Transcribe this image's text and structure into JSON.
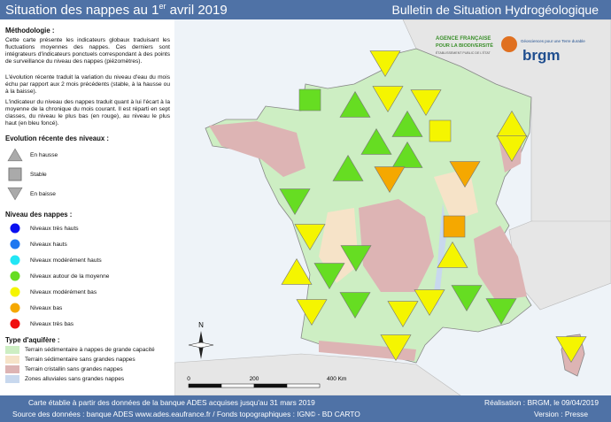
{
  "header": {
    "title": "Situation des nappes au 1",
    "title_sup": "er",
    "title_end": " avril 2019",
    "bulletin": "Bulletin de Situation Hydrogéologique"
  },
  "methodology": {
    "title": "Méthodologie :",
    "paragraphs": [
      "Cette carte présente les indicateurs globaux traduisant les fluctuations moyennes des nappes. Ces derniers sont intégrateurs d'indicateurs ponctuels correspondant à des points de surveillance du niveau des nappes (piézomètres).",
      "L'évolution récente traduit la variation du niveau d'eau du mois échu par rapport aux 2 mois précédents (stable, à la hausse ou à la baisse).",
      "L'indicateur du niveau des nappes traduit quant à lui l'écart à la moyenne de la chronique du mois courant. Il est réparti en sept classes, du niveau le plus bas (en rouge), au niveau le plus haut (en bleu foncé)."
    ]
  },
  "legend": {
    "trend": {
      "title": "Evolution récente des niveaux :",
      "items": [
        "En hausse",
        "Stable",
        "En baisse"
      ]
    },
    "levels": {
      "title": "Niveau des nappes :",
      "items": [
        {
          "label": "Niveaux très hauts",
          "color": "#0a10f0"
        },
        {
          "label": "Niveaux hauts",
          "color": "#1e78f0"
        },
        {
          "label": "Niveaux modérément hauts",
          "color": "#22e6f5"
        },
        {
          "label": "Niveaux autour de la moyenne",
          "color": "#66dd22"
        },
        {
          "label": "Niveaux modérément bas",
          "color": "#f5f500"
        },
        {
          "label": "Niveaux bas",
          "color": "#f5a800"
        },
        {
          "label": "Niveaux très bas",
          "color": "#f01010"
        }
      ]
    },
    "aquifer": {
      "title": "Type d'aquifère :",
      "items": [
        {
          "label": "Terrain sédimentaire à nappes de grande capacité",
          "color": "#cdeec3"
        },
        {
          "label": "Terrain sédimentaire sans grandes nappes",
          "color": "#f6e3c8"
        },
        {
          "label": "Terrain cristallin sans grandes nappes",
          "color": "#ddb4b4"
        },
        {
          "label": "Zones alluviales sans grandes nappes",
          "color": "#c8d8ee"
        }
      ]
    }
  },
  "map": {
    "north": "N",
    "scale": [
      "0",
      "200",
      "400 Km"
    ],
    "afb": [
      "AGENCE FRANÇAISE",
      "POUR LA BIODIVERSITÉ",
      "ÉTABLISSEMENT PUBLIC DE L'ÉTAT"
    ],
    "brgm_tagline": "Géosciences pour une Terre durable",
    "brgm": "brgm"
  },
  "footer": {
    "line1": "Carte établie à partir des données de la banque ADES acquises jusqu'au 31 mars 2019",
    "line2": "Source des données : banque ADES www.ades.eaufrance.fr / Fonds topographiques : IGN© - BD CARTO",
    "credit": "Réalisation : BRGM, le 09/04/2019",
    "version": "Version : Presse"
  }
}
